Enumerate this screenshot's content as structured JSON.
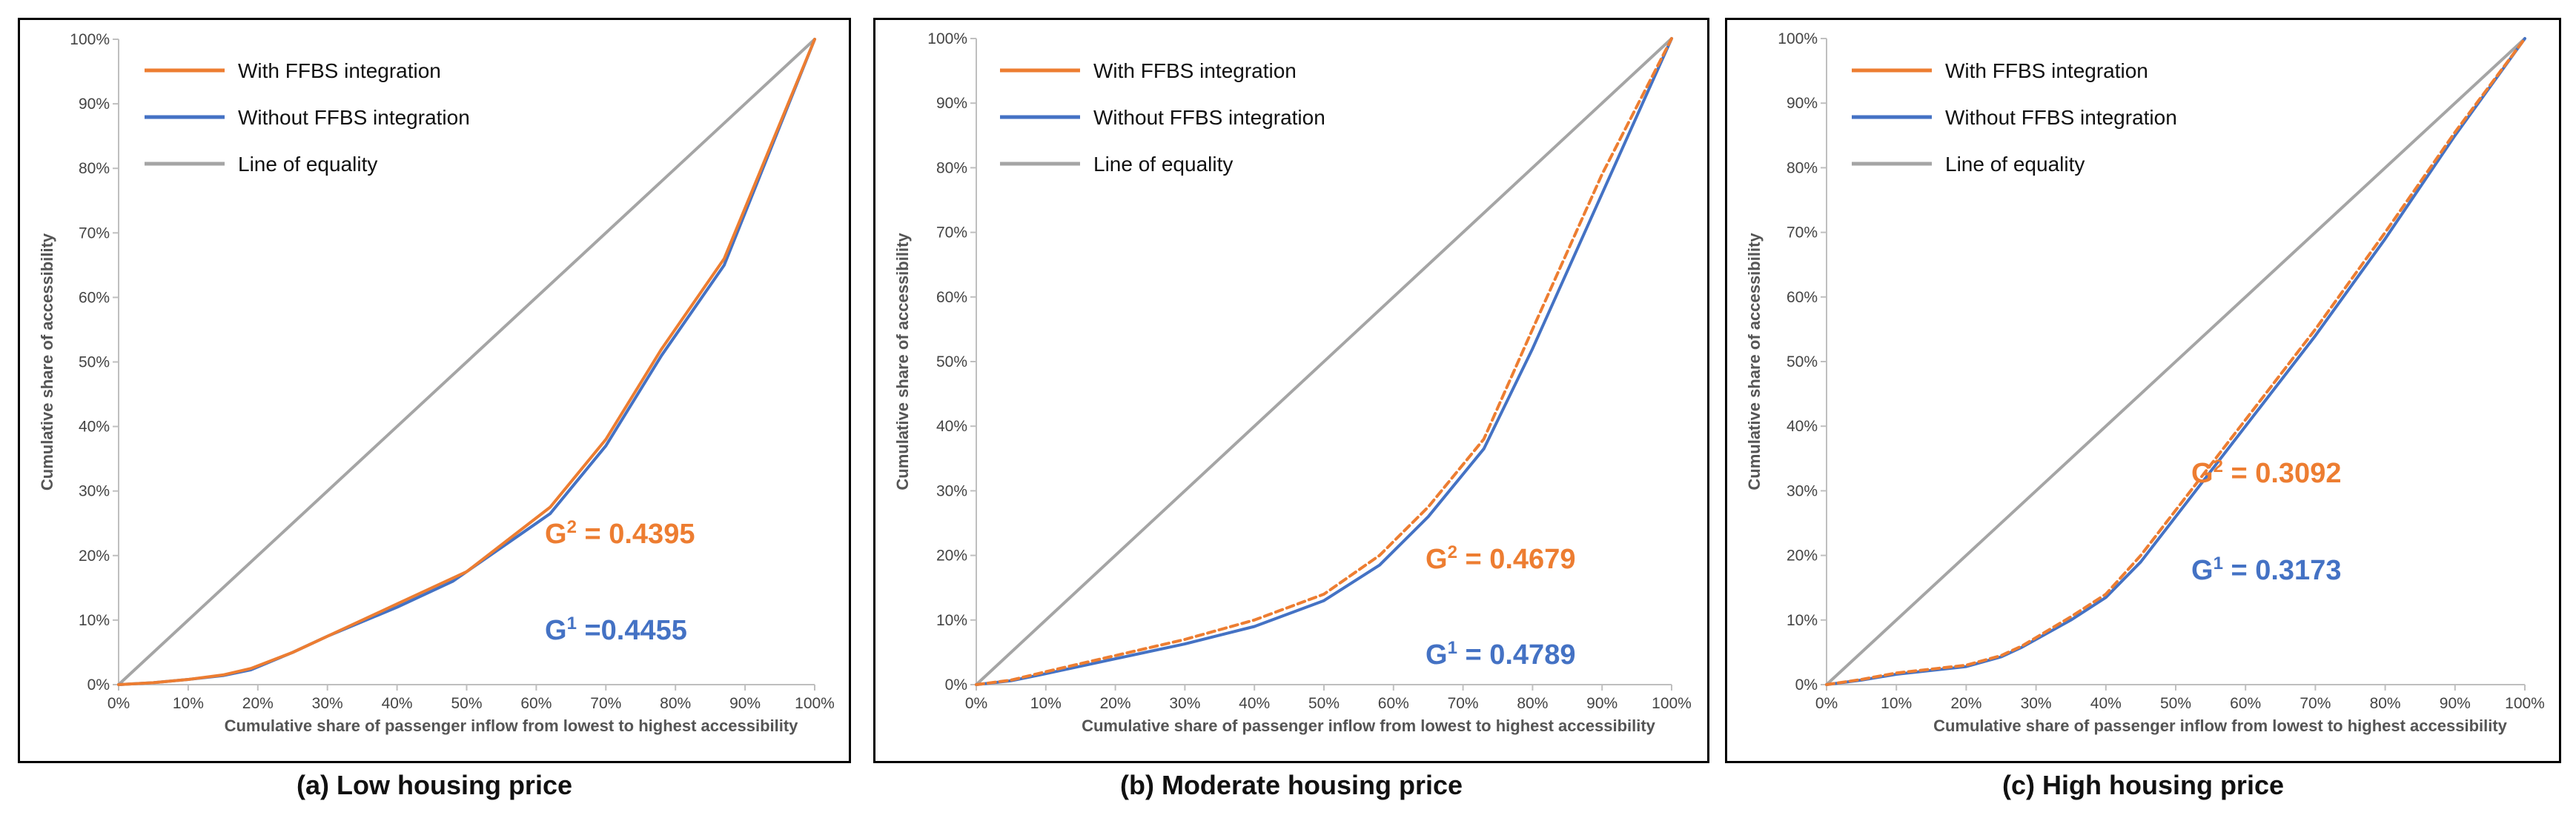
{
  "chart_data": [
    {
      "type": "line",
      "caption": "(a) Low housing price",
      "xlabel": "Cumulative share of passenger inflow from lowest to highest accessibility",
      "ylabel": "Cumulative share of accessibility",
      "xlim": [
        0,
        100
      ],
      "ylim": [
        0,
        100
      ],
      "x_ticks": [
        "0%",
        "10%",
        "20%",
        "30%",
        "40%",
        "50%",
        "60%",
        "70%",
        "80%",
        "90%",
        "100%"
      ],
      "y_ticks": [
        "0%",
        "10%",
        "20%",
        "30%",
        "40%",
        "50%",
        "60%",
        "70%",
        "80%",
        "90%",
        "100%"
      ],
      "legend_position": "top-left",
      "series": [
        {
          "name": "With FFBS integration",
          "color": "#ED7D31",
          "dashed": false,
          "x": [
            0,
            5,
            10,
            15,
            19,
            25,
            30,
            40,
            50,
            62,
            70,
            78,
            87,
            100
          ],
          "y": [
            0,
            0.3,
            0.8,
            1.5,
            2.5,
            5,
            7.5,
            12.5,
            17.5,
            27.5,
            38,
            52,
            66,
            100
          ]
        },
        {
          "name": "Without FFBS integration",
          "color": "#4472C4",
          "dashed": false,
          "x": [
            0,
            5,
            10,
            15,
            19,
            25,
            30,
            40,
            48,
            60,
            62,
            70,
            78,
            87,
            100
          ],
          "y": [
            0,
            0.3,
            0.8,
            1.4,
            2.3,
            5,
            7.5,
            12,
            16,
            25,
            26.5,
            37,
            51,
            65,
            100
          ]
        },
        {
          "name": "Line of equality",
          "color": "#A5A5A5",
          "dashed": false,
          "x": [
            0,
            100
          ],
          "y": [
            0,
            100
          ]
        }
      ],
      "annotations": [
        {
          "prefix": "G",
          "sup": "2",
          "text": " =  0.4395",
          "color": "#ED7D31"
        },
        {
          "prefix": "G",
          "sup": "1",
          "text": " =0.4455",
          "color": "#4472C4"
        }
      ]
    },
    {
      "type": "line",
      "caption": "(b) Moderate housing price",
      "xlabel": "Cumulative share of passenger inflow from lowest to highest accessibility",
      "ylabel": "Cumulative share of accessibility",
      "xlim": [
        0,
        100
      ],
      "ylim": [
        0,
        100
      ],
      "x_ticks": [
        "0%",
        "10%",
        "20%",
        "30%",
        "40%",
        "50%",
        "60%",
        "70%",
        "80%",
        "90%",
        "100%"
      ],
      "y_ticks": [
        "0%",
        "10%",
        "20%",
        "30%",
        "40%",
        "50%",
        "60%",
        "70%",
        "80%",
        "90%",
        "100%"
      ],
      "legend_position": "top-left",
      "series": [
        {
          "name": "With FFBS integration",
          "color": "#ED7D31",
          "dashed": true,
          "x": [
            0,
            5,
            10,
            20,
            30,
            40,
            50,
            58,
            65,
            73,
            80,
            90,
            100
          ],
          "y": [
            0,
            0.7,
            2,
            4.5,
            7,
            10,
            14,
            20,
            27.5,
            38,
            55,
            79,
            100
          ]
        },
        {
          "name": "Without FFBS integration",
          "color": "#4472C4",
          "dashed": false,
          "x": [
            0,
            5,
            10,
            20,
            30,
            40,
            50,
            58,
            65,
            73,
            80,
            90,
            100
          ],
          "y": [
            0,
            0.6,
            1.7,
            4,
            6.3,
            9,
            13,
            18.5,
            26,
            36.5,
            52,
            76,
            100
          ]
        },
        {
          "name": "Line of equality",
          "color": "#A5A5A5",
          "dashed": false,
          "x": [
            0,
            100
          ],
          "y": [
            0,
            100
          ]
        }
      ],
      "annotations": [
        {
          "prefix": "G",
          "sup": "2",
          "text": " = 0.4679",
          "color": "#ED7D31"
        },
        {
          "prefix": "G",
          "sup": "1",
          "text": " = 0.4789",
          "color": "#4472C4"
        }
      ]
    },
    {
      "type": "line",
      "caption": "(c) High housing price",
      "xlabel": "Cumulative share of passenger inflow from lowest to highest accessibility",
      "ylabel": "Cumulative share of accessibility",
      "xlim": [
        0,
        100
      ],
      "ylim": [
        0,
        100
      ],
      "x_ticks": [
        "0%",
        "10%",
        "20%",
        "30%",
        "40%",
        "50%",
        "60%",
        "70%",
        "80%",
        "90%",
        "100%"
      ],
      "y_ticks": [
        "0%",
        "10%",
        "20%",
        "30%",
        "40%",
        "50%",
        "60%",
        "70%",
        "80%",
        "90%",
        "100%"
      ],
      "legend_position": "top-left",
      "series": [
        {
          "name": "With FFBS integration",
          "color": "#ED7D31",
          "dashed": true,
          "x": [
            0,
            5,
            10,
            20,
            25,
            28,
            35,
            40,
            45,
            50,
            60,
            70,
            80,
            90,
            100
          ],
          "y": [
            0,
            0.8,
            1.8,
            3,
            4.5,
            6,
            10.5,
            14,
            20,
            27,
            41,
            55,
            70,
            85.5,
            100
          ]
        },
        {
          "name": "Without FFBS integration",
          "color": "#4472C4",
          "dashed": false,
          "x": [
            0,
            5,
            10,
            20,
            25,
            28,
            35,
            40,
            45,
            50,
            60,
            70,
            80,
            90,
            100
          ],
          "y": [
            0,
            0.7,
            1.6,
            2.8,
            4.3,
            5.8,
            10,
            13.5,
            19,
            26,
            40,
            54,
            69,
            85,
            100
          ]
        },
        {
          "name": "Line of equality",
          "color": "#A5A5A5",
          "dashed": false,
          "x": [
            0,
            100
          ],
          "y": [
            0,
            100
          ]
        }
      ],
      "annotations": [
        {
          "prefix": "G",
          "sup": "2",
          "text": " = 0.3092",
          "color": "#ED7D31"
        },
        {
          "prefix": "G",
          "sup": "1",
          "text": " = 0.3173",
          "color": "#4472C4"
        }
      ]
    }
  ]
}
